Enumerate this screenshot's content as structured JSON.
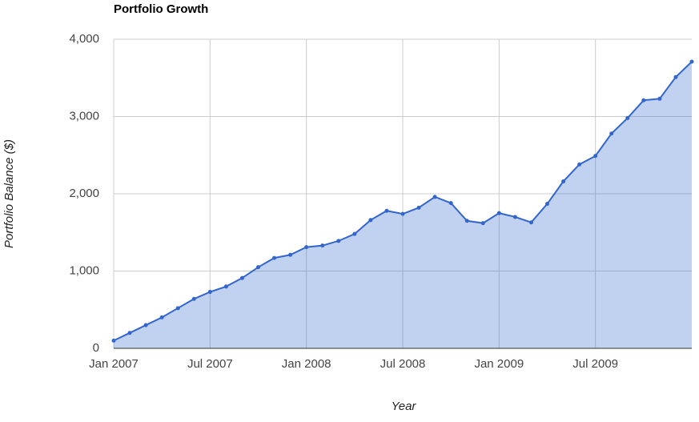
{
  "chart_data": {
    "type": "area",
    "title": "Portfolio Growth",
    "x_label": "Year",
    "y_label": "Portfolio Balance ($)",
    "x": [
      "2007-01",
      "2007-02",
      "2007-03",
      "2007-04",
      "2007-05",
      "2007-06",
      "2007-07",
      "2007-08",
      "2007-09",
      "2007-10",
      "2007-11",
      "2007-12",
      "2008-01",
      "2008-02",
      "2008-03",
      "2008-04",
      "2008-05",
      "2008-06",
      "2008-07",
      "2008-08",
      "2008-09",
      "2008-10",
      "2008-11",
      "2008-12",
      "2009-01",
      "2009-02",
      "2009-03",
      "2009-04",
      "2009-05",
      "2009-06",
      "2009-07",
      "2009-08",
      "2009-09",
      "2009-10",
      "2009-11",
      "2009-12",
      "2010-01"
    ],
    "series": [
      {
        "name": "Portfolio Balance",
        "color": "#3366cc",
        "values": [
          100,
          200,
          300,
          400,
          520,
          640,
          730,
          800,
          910,
          1050,
          1170,
          1210,
          1310,
          1330,
          1390,
          1480,
          1660,
          1780,
          1740,
          1820,
          1960,
          1880,
          1650,
          1620,
          1750,
          1700,
          1630,
          1870,
          2160,
          2380,
          2490,
          2780,
          2980,
          3210,
          3230,
          3510,
          3710
        ]
      }
    ],
    "xlim": [
      "2007-01",
      "2010-01"
    ],
    "xticks": [
      {
        "value": "2007-01",
        "label": "Jan 2007"
      },
      {
        "value": "2007-07",
        "label": "Jul 2007"
      },
      {
        "value": "2008-01",
        "label": "Jan 2008"
      },
      {
        "value": "2008-07",
        "label": "Jul 2008"
      },
      {
        "value": "2009-01",
        "label": "Jan 2009"
      },
      {
        "value": "2009-07",
        "label": "Jul 2009"
      }
    ],
    "ylim": [
      0,
      4000
    ],
    "yticks": [
      0,
      {
        "value": 1000,
        "label": "1,000"
      },
      {
        "value": 2000,
        "label": "2,000"
      },
      {
        "value": 3000,
        "label": "3,000"
      },
      {
        "value": 4000,
        "label": "4,000"
      }
    ],
    "grid": true
  }
}
